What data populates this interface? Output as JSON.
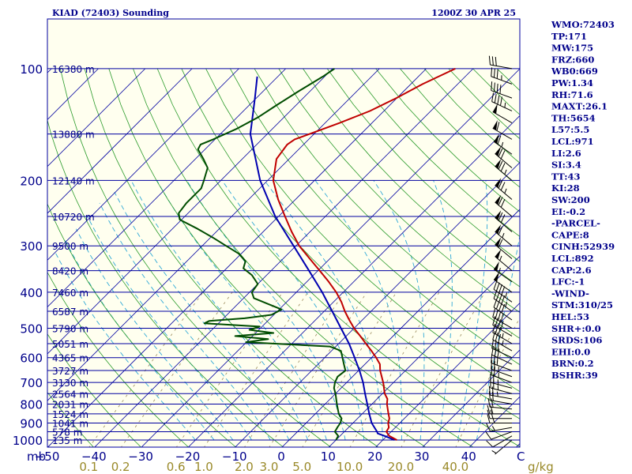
{
  "header": {
    "station": "KIAD (72403) Sounding",
    "time": "1200Z 30 APR 25"
  },
  "colors": {
    "background": "#ffffef",
    "isobar": "#0000a0",
    "isotherm": "#0000a0",
    "dry_adiabat": "#2b9b2b",
    "moist_adiabat": "#2fa9d6",
    "mixing_ratio": "#9a8a5a",
    "temperature": "#c00000",
    "dewpoint": "#004d00",
    "parcel": "#0000b0",
    "text": "#00008b",
    "mixing_ratio_text": "#9a8a2a"
  },
  "chart_data": {
    "type": "skew-t",
    "pressure_ticks": [
      {
        "p": 100,
        "label": "100"
      },
      {
        "p": 200,
        "label": "200"
      },
      {
        "p": 300,
        "label": "300"
      },
      {
        "p": 400,
        "label": "400"
      },
      {
        "p": 500,
        "label": "500"
      },
      {
        "p": 600,
        "label": "600"
      },
      {
        "p": 700,
        "label": "700"
      },
      {
        "p": 800,
        "label": "800"
      },
      {
        "p": 900,
        "label": "900"
      },
      {
        "p": 1000,
        "label": "1000"
      }
    ],
    "pressure_unit_label": "mb",
    "height_labels": [
      {
        "p": 100,
        "label": "16380 m"
      },
      {
        "p": 150,
        "label": "13880 m"
      },
      {
        "p": 200,
        "label": "12140 m"
      },
      {
        "p": 250,
        "label": "10720 m"
      },
      {
        "p": 300,
        "label": "9500 m"
      },
      {
        "p": 350,
        "label": "8420 m"
      },
      {
        "p": 400,
        "label": "7460 m"
      },
      {
        "p": 450,
        "label": "6587 m"
      },
      {
        "p": 500,
        "label": "5790 m"
      },
      {
        "p": 550,
        "label": "5051 m"
      },
      {
        "p": 600,
        "label": "4365 m"
      },
      {
        "p": 650,
        "label": "3727 m"
      },
      {
        "p": 700,
        "label": "3130 m"
      },
      {
        "p": 750,
        "label": "2564 m"
      },
      {
        "p": 800,
        "label": "2031 m"
      },
      {
        "p": 850,
        "label": "1524 m"
      },
      {
        "p": 900,
        "label": "1041 m"
      },
      {
        "p": 950,
        "label": "578 m"
      },
      {
        "p": 1000,
        "label": "135 m"
      }
    ],
    "temperature_ticks": [
      {
        "t": -50,
        "label": "−50"
      },
      {
        "t": -40,
        "label": "−40"
      },
      {
        "t": -30,
        "label": "−30"
      },
      {
        "t": -20,
        "label": "−20"
      },
      {
        "t": -10,
        "label": "−10"
      },
      {
        "t": 0,
        "label": "0"
      },
      {
        "t": 10,
        "label": "10"
      },
      {
        "t": 20,
        "label": "20"
      },
      {
        "t": 30,
        "label": "30"
      },
      {
        "t": 40,
        "label": "40"
      }
    ],
    "temperature_unit_label": "C",
    "mixing_ratio_ticks": [
      {
        "w": 0.1,
        "label": "0.1"
      },
      {
        "w": 0.2,
        "label": "0.2"
      },
      {
        "w": 0.6,
        "label": "0.6"
      },
      {
        "w": 1.0,
        "label": "1.0"
      },
      {
        "w": 2.0,
        "label": "2.0"
      },
      {
        "w": 3.0,
        "label": "3.0"
      },
      {
        "w": 5.0,
        "label": "5.0"
      },
      {
        "w": 10.0,
        "label": "10.0"
      },
      {
        "w": 20.0,
        "label": "20.0"
      },
      {
        "w": 40.0,
        "label": "40.0"
      }
    ],
    "mixing_ratio_unit_label": "g/kg",
    "pressure_range": [
      100,
      1050
    ],
    "temperature_range_at_1050": [
      -52,
      48
    ],
    "temperature_profile": [
      [
        1000,
        23
      ],
      [
        975,
        20.5
      ],
      [
        950,
        19
      ],
      [
        925,
        18.6
      ],
      [
        900,
        17.5
      ],
      [
        875,
        16.8
      ],
      [
        850,
        15.6
      ],
      [
        800,
        13.2
      ],
      [
        775,
        12.2
      ],
      [
        750,
        10.5
      ],
      [
        700,
        7.8
      ],
      [
        650,
        4.6
      ],
      [
        625,
        3.2
      ],
      [
        600,
        1.0
      ],
      [
        575,
        -1.5
      ],
      [
        550,
        -4.2
      ],
      [
        525,
        -7.0
      ],
      [
        500,
        -10.0
      ],
      [
        475,
        -12.8
      ],
      [
        450,
        -15.6
      ],
      [
        425,
        -18.3
      ],
      [
        400,
        -21.5
      ],
      [
        375,
        -25.3
      ],
      [
        350,
        -29.6
      ],
      [
        325,
        -34.3
      ],
      [
        300,
        -39.3
      ],
      [
        275,
        -43.9
      ],
      [
        250,
        -48.6
      ],
      [
        225,
        -53.7
      ],
      [
        200,
        -58.8
      ],
      [
        175,
        -62.7
      ],
      [
        160,
        -63.5
      ],
      [
        155,
        -63.0
      ],
      [
        150,
        -61.0
      ],
      [
        140,
        -56.9
      ],
      [
        130,
        -53.0
      ],
      [
        120,
        -50.1
      ],
      [
        110,
        -47.5
      ],
      [
        100,
        -43.8
      ]
    ],
    "dewpoint_profile": [
      [
        1000,
        10
      ],
      [
        975,
        9.6
      ],
      [
        950,
        8
      ],
      [
        925,
        7.6
      ],
      [
        900,
        7.3
      ],
      [
        875,
        6.6
      ],
      [
        850,
        5.0
      ],
      [
        800,
        2.5
      ],
      [
        750,
        0
      ],
      [
        725,
        -1.5
      ],
      [
        700,
        -2.5
      ],
      [
        675,
        -3.2
      ],
      [
        650,
        -2.8
      ],
      [
        625,
        -4.5
      ],
      [
        600,
        -6.2
      ],
      [
        575,
        -8.0
      ],
      [
        560,
        -11.3
      ],
      [
        545,
        -30.1
      ],
      [
        535,
        -26.0
      ],
      [
        525,
        -33.7
      ],
      [
        515,
        -26.2
      ],
      [
        505,
        -32.0
      ],
      [
        495,
        -30.5
      ],
      [
        485,
        -43.0
      ],
      [
        478,
        -42.5
      ],
      [
        470,
        -35.5
      ],
      [
        460,
        -30.5
      ],
      [
        445,
        -29.5
      ],
      [
        430,
        -33.6
      ],
      [
        415,
        -37.8
      ],
      [
        400,
        -39.5
      ],
      [
        380,
        -40.0
      ],
      [
        360,
        -43.1
      ],
      [
        345,
        -46.4
      ],
      [
        330,
        -47.5
      ],
      [
        315,
        -50.5
      ],
      [
        300,
        -54.9
      ],
      [
        285,
        -59.5
      ],
      [
        270,
        -64.6
      ],
      [
        255,
        -70.4
      ],
      [
        245,
        -72.0
      ],
      [
        230,
        -72.5
      ],
      [
        210,
        -72.5
      ],
      [
        200,
        -73.6
      ],
      [
        185,
        -75.5
      ],
      [
        175,
        -78.3
      ],
      [
        165,
        -81.5
      ],
      [
        160,
        -82.0
      ],
      [
        155,
        -80.4
      ],
      [
        145,
        -77.6
      ],
      [
        135,
        -75.5
      ],
      [
        125,
        -74.1
      ],
      [
        115,
        -72.4
      ],
      [
        105,
        -70.4
      ],
      [
        100,
        -69.6
      ]
    ],
    "parcel_profile": [
      [
        1000,
        22.5
      ],
      [
        975,
        19.5
      ],
      [
        960,
        17.5
      ],
      [
        950,
        17.0
      ],
      [
        900,
        14.0
      ],
      [
        850,
        11.5
      ],
      [
        800,
        9.0
      ],
      [
        750,
        6.3
      ],
      [
        700,
        3.5
      ],
      [
        650,
        0.2
      ],
      [
        600,
        -3.6
      ],
      [
        550,
        -7.8
      ],
      [
        500,
        -12.8
      ],
      [
        450,
        -18.3
      ],
      [
        400,
        -24.5
      ],
      [
        350,
        -31.9
      ],
      [
        300,
        -40.5
      ],
      [
        250,
        -50.7
      ],
      [
        200,
        -61.6
      ],
      [
        150,
        -73.6
      ],
      [
        120,
        -80.3
      ],
      [
        105,
        -84.4
      ]
    ],
    "wind_barbs": [
      [
        1000,
        230,
        5
      ],
      [
        975,
        240,
        10
      ],
      [
        950,
        250,
        10
      ],
      [
        925,
        260,
        15
      ],
      [
        900,
        270,
        15
      ],
      [
        875,
        270,
        20
      ],
      [
        850,
        270,
        20
      ],
      [
        825,
        275,
        20
      ],
      [
        800,
        280,
        20
      ],
      [
        775,
        280,
        25
      ],
      [
        750,
        285,
        25
      ],
      [
        725,
        285,
        25
      ],
      [
        700,
        290,
        25
      ],
      [
        675,
        290,
        25
      ],
      [
        650,
        290,
        30
      ],
      [
        625,
        295,
        30
      ],
      [
        600,
        295,
        30
      ],
      [
        575,
        300,
        35
      ],
      [
        550,
        300,
        35
      ],
      [
        525,
        300,
        40
      ],
      [
        500,
        300,
        40
      ],
      [
        475,
        305,
        40
      ],
      [
        450,
        305,
        45
      ],
      [
        425,
        305,
        45
      ],
      [
        400,
        305,
        50
      ],
      [
        375,
        305,
        55
      ],
      [
        350,
        310,
        55
      ],
      [
        325,
        310,
        60
      ],
      [
        300,
        310,
        65
      ],
      [
        275,
        310,
        70
      ],
      [
        250,
        310,
        70
      ],
      [
        225,
        310,
        75
      ],
      [
        200,
        310,
        75
      ],
      [
        185,
        310,
        70
      ],
      [
        170,
        305,
        65
      ],
      [
        155,
        300,
        60
      ],
      [
        140,
        300,
        50
      ],
      [
        130,
        295,
        45
      ],
      [
        120,
        290,
        40
      ],
      [
        110,
        290,
        35
      ],
      [
        100,
        280,
        30
      ]
    ]
  },
  "indices": [
    "WMO:72403",
    "TP:171",
    "MW:175",
    "FRZ:660",
    "WB0:669",
    "PW:1.34",
    "RH:71.6",
    "MAXT:26.1",
    "TH:5654",
    "L57:5.5",
    "LCL:971",
    "LI:2.6",
    "SI:3.4",
    "TT:43",
    "KI:28",
    "SW:200",
    "EI:-0.2",
    "-PARCEL-",
    "CAPE:8",
    "CINH:52939",
    "LCL:892",
    "CAP:2.6",
    "LFC:-1",
    "-WIND-",
    "STM:310/25",
    "HEL:53",
    "SHR+:0.0",
    "SRDS:106",
    "EHI:0.0",
    "BRN:0.2",
    "BSHR:39"
  ]
}
